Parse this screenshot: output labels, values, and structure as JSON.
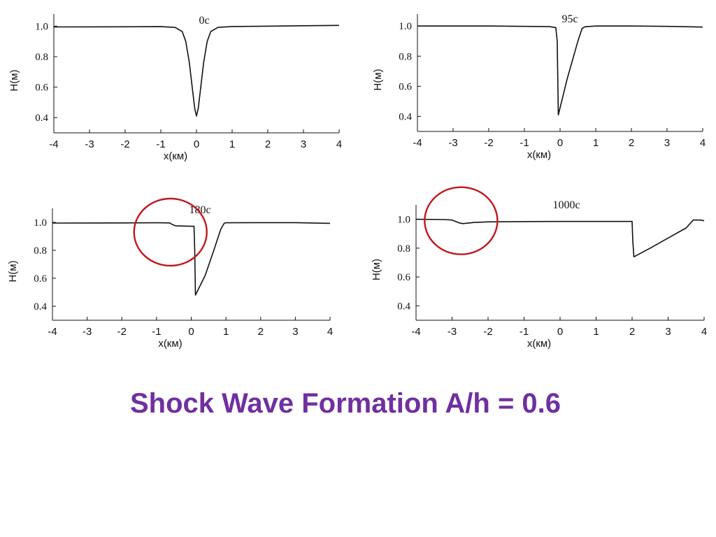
{
  "slide": {
    "title": "Shock Wave Formation A/h = 0.6"
  },
  "colors": {
    "title": "#7030a0",
    "highlight_circle": "#c0181c",
    "curve": "#111111"
  },
  "chart_data": [
    {
      "type": "line",
      "title": "0с",
      "xlabel": "х(км)",
      "ylabel": "Н(м)",
      "xlim": [
        -4,
        4
      ],
      "ylim": [
        0.3,
        1.08
      ],
      "xticks": [
        "-4",
        "-3",
        "-2",
        "-1",
        "0",
        "1",
        "2",
        "3",
        "4"
      ],
      "yticks": [
        "1.0",
        "0.8",
        "0.6",
        "0.4"
      ],
      "highlight": null,
      "series": [
        {
          "x": [
            -4,
            -2,
            -1,
            -0.6,
            -0.4,
            -0.3,
            -0.2,
            -0.1,
            -0.05,
            0,
            0.05,
            0.1,
            0.2,
            0.3,
            0.4,
            0.6,
            1,
            2,
            3,
            4
          ],
          "y": [
            0.995,
            0.996,
            0.997,
            0.992,
            0.965,
            0.9,
            0.76,
            0.56,
            0.46,
            0.41,
            0.46,
            0.56,
            0.76,
            0.9,
            0.965,
            0.992,
            0.998,
            1.0,
            1.003,
            1.005
          ]
        }
      ]
    },
    {
      "type": "line",
      "title": "95с",
      "xlabel": "х(км)",
      "ylabel": "Н(м)",
      "xlim": [
        -4,
        4
      ],
      "ylim": [
        0.3,
        1.08
      ],
      "xticks": [
        "-4",
        "-3",
        "-2",
        "-1",
        "0",
        "1",
        "2",
        "3",
        "4"
      ],
      "yticks": [
        "1.0",
        "0.8",
        "0.6",
        "0.4"
      ],
      "highlight": null,
      "series": [
        {
          "x": [
            -4,
            -2,
            -1,
            -0.3,
            -0.12,
            -0.08,
            -0.05,
            0.2,
            0.5,
            0.62,
            0.7,
            1,
            2,
            3,
            4
          ],
          "y": [
            1.0,
            1.0,
            0.998,
            0.996,
            0.99,
            0.9,
            0.41,
            0.65,
            0.9,
            0.985,
            0.995,
            1.0,
            1.0,
            0.998,
            0.993
          ]
        }
      ]
    },
    {
      "type": "line",
      "title": "180с",
      "xlabel": "х(км)",
      "ylabel": "Н(м)",
      "xlim": [
        -4,
        4
      ],
      "ylim": [
        0.3,
        1.1
      ],
      "xticks": [
        "-4",
        "-3",
        "-2",
        "-1",
        "0",
        "1",
        "2",
        "3",
        "4"
      ],
      "yticks": [
        "1.0",
        "0.8",
        "0.6",
        "0.4"
      ],
      "highlight": {
        "x": -0.6,
        "y": 0.93
      },
      "series": [
        {
          "x": [
            -4,
            -2,
            -1,
            -0.62,
            -0.55,
            -0.45,
            0.0,
            0.08,
            0.1,
            0.12,
            0.4,
            0.65,
            0.85,
            0.95,
            1,
            2,
            3,
            4
          ],
          "y": [
            0.995,
            0.996,
            0.997,
            0.996,
            0.985,
            0.975,
            0.972,
            0.972,
            0.8,
            0.48,
            0.62,
            0.8,
            0.95,
            0.993,
            0.997,
            0.998,
            0.998,
            0.993
          ]
        }
      ]
    },
    {
      "type": "line",
      "title": "1000с",
      "xlabel": "х(км)",
      "ylabel": "Н(м)",
      "xlim": [
        -4,
        4
      ],
      "ylim": [
        0.3,
        1.1
      ],
      "xticks": [
        "-4",
        "-3",
        "-2",
        "-1",
        "0",
        "1",
        "2",
        "3",
        "4"
      ],
      "yticks": [
        "1.0",
        "0.8",
        "0.6",
        "0.4"
      ],
      "highlight": {
        "x": -2.75,
        "y": 0.99
      },
      "series": [
        {
          "x": [
            -4,
            -3.2,
            -3.0,
            -2.8,
            -2.7,
            -2.4,
            -2.0,
            -1,
            0,
            1,
            2,
            2.02,
            2.05,
            2.5,
            3.0,
            3.5,
            3.7,
            3.9,
            4
          ],
          "y": [
            1.0,
            0.998,
            0.995,
            0.975,
            0.97,
            0.978,
            0.982,
            0.984,
            0.985,
            0.985,
            0.985,
            0.85,
            0.74,
            0.8,
            0.87,
            0.94,
            0.995,
            0.995,
            0.99
          ]
        }
      ]
    }
  ]
}
